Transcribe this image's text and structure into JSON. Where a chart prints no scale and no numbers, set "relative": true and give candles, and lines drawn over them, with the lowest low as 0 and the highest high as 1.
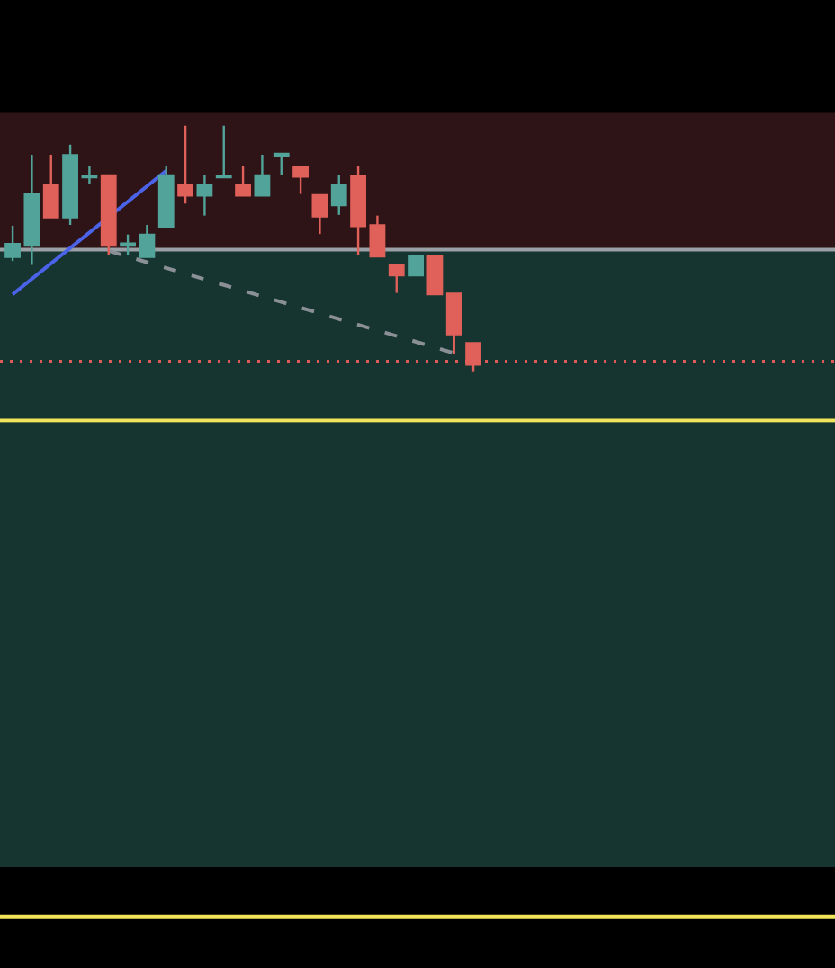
{
  "chart_data": {
    "type": "candlestick",
    "relative": true,
    "categories": [
      null,
      null,
      null,
      null,
      null,
      null,
      null,
      null,
      null,
      null,
      null,
      null,
      null,
      null,
      null,
      null,
      null,
      null,
      null,
      null,
      null,
      null,
      null,
      null,
      null
    ],
    "ohlc": [
      [
        0.464,
        0.593,
        0.449,
        0.52
      ],
      [
        0.51,
        0.882,
        0.433,
        0.722
      ],
      [
        0.76,
        0.882,
        0.626,
        0.626
      ],
      [
        0.626,
        0.923,
        0.596,
        0.882
      ],
      [
        0.789,
        0.835,
        0.763,
        0.797
      ],
      [
        0.799,
        0.799,
        0.472,
        0.51
      ],
      [
        0.51,
        0.557,
        0.472,
        0.522
      ],
      [
        0.464,
        0.596,
        0.464,
        0.557
      ],
      [
        0.588,
        0.835,
        0.588,
        0.799
      ],
      [
        0.76,
        1.0,
        0.683,
        0.714
      ],
      [
        0.714,
        0.799,
        0.634,
        0.76
      ],
      [
        0.789,
        1.0,
        0.789,
        0.797
      ],
      [
        0.758,
        0.835,
        0.714,
        0.714
      ],
      [
        0.714,
        0.882,
        0.714,
        0.799
      ],
      [
        0.876,
        0.887,
        0.799,
        0.887
      ],
      [
        0.835,
        0.835,
        0.722,
        0.791
      ],
      [
        0.719,
        0.719,
        0.559,
        0.629
      ],
      [
        0.675,
        0.799,
        0.637,
        0.758
      ],
      [
        0.797,
        0.835,
        0.474,
        0.59
      ],
      [
        0.596,
        0.634,
        0.466,
        0.466
      ],
      [
        0.433,
        0.433,
        0.319,
        0.389
      ],
      [
        0.389,
        0.472,
        0.389,
        0.472
      ],
      [
        0.472,
        0.472,
        0.312,
        0.312
      ],
      [
        0.317,
        0.317,
        0.072,
        0.149
      ],
      [
        0.116,
        0.116,
        0,
        0.026
      ]
    ],
    "colors": [
      "#52a49a",
      "#52a49a",
      "#e0605a",
      "#52a49a",
      "#52a49a",
      "#e0605a",
      "#52a49a",
      "#52a49a",
      "#52a49a",
      "#e0605a",
      "#52a49a",
      "#52a49a",
      "#e0605a",
      "#52a49a",
      "#52a49a",
      "#e0605a",
      "#e0605a",
      "#52a49a",
      "#e0605a",
      "#e0605a",
      "#e0605a",
      "#52a49a",
      "#e0605a",
      "#e0605a",
      "#e0605a"
    ],
    "series": [
      {
        "type": "line",
        "color": "#4a63e8",
        "values": [
          0.313,
          null,
          null,
          null,
          null,
          null,
          null,
          null,
          0.817,
          null,
          null,
          null,
          null,
          null,
          null,
          null,
          null,
          null,
          null,
          null,
          null,
          null,
          null,
          null,
          null
        ]
      },
      {
        "type": "line",
        "color": "#8a9096",
        "line_style": "dashed",
        "values": [
          null,
          null,
          null,
          null,
          null,
          0.49,
          null,
          null,
          null,
          null,
          null,
          null,
          null,
          null,
          null,
          null,
          null,
          null,
          null,
          null,
          null,
          null,
          null,
          0.074,
          null
        ]
      }
    ],
    "ref_lines": [
      {
        "axis": "y",
        "value": 0.495,
        "color": "#9aa0a6"
      },
      {
        "axis": "y",
        "value": 0.039,
        "color": "#e05a5a",
        "line_style": "dotted"
      },
      {
        "axis": "y",
        "value": -0.201,
        "color": "#f2e45a"
      },
      {
        "axis": "y",
        "value": -2.22,
        "color": "#f2e45a"
      }
    ],
    "bands": [
      {
        "axis": "y",
        "from": 0.495,
        "to": 1.052,
        "color": "#2e1416"
      },
      {
        "axis": "y",
        "from": -2.02,
        "to": 0.495,
        "color": "#163530"
      }
    ]
  }
}
